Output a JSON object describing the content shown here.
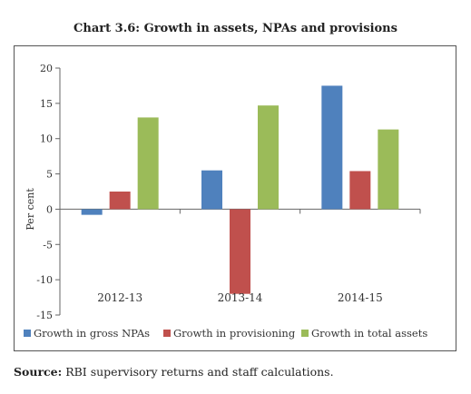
{
  "chart_data": {
    "type": "bar",
    "title": "Chart 3.6: Growth in assets, NPAs and provisions",
    "ylabel": "Per cent",
    "xlabel": "",
    "ylim": [
      -15,
      20
    ],
    "yticks": [
      20,
      15,
      10,
      5,
      0,
      -5,
      -10,
      -15
    ],
    "categories": [
      "2012-13",
      "2013-14",
      "2014-15"
    ],
    "series": [
      {
        "name": "Growth in gross NPAs",
        "color": "#4f81bd",
        "values": [
          -0.8,
          5.5,
          17.5
        ]
      },
      {
        "name": "Growth in provisioning",
        "color": "#c0504d",
        "values": [
          2.5,
          -12.0,
          5.4
        ]
      },
      {
        "name": "Growth in total assets",
        "color": "#9bbb59",
        "values": [
          13.0,
          14.7,
          11.3
        ]
      }
    ],
    "legend": "bottom",
    "grid": false
  },
  "source": {
    "label": "Source:",
    "text": " RBI supervisory returns and staff calculations."
  }
}
